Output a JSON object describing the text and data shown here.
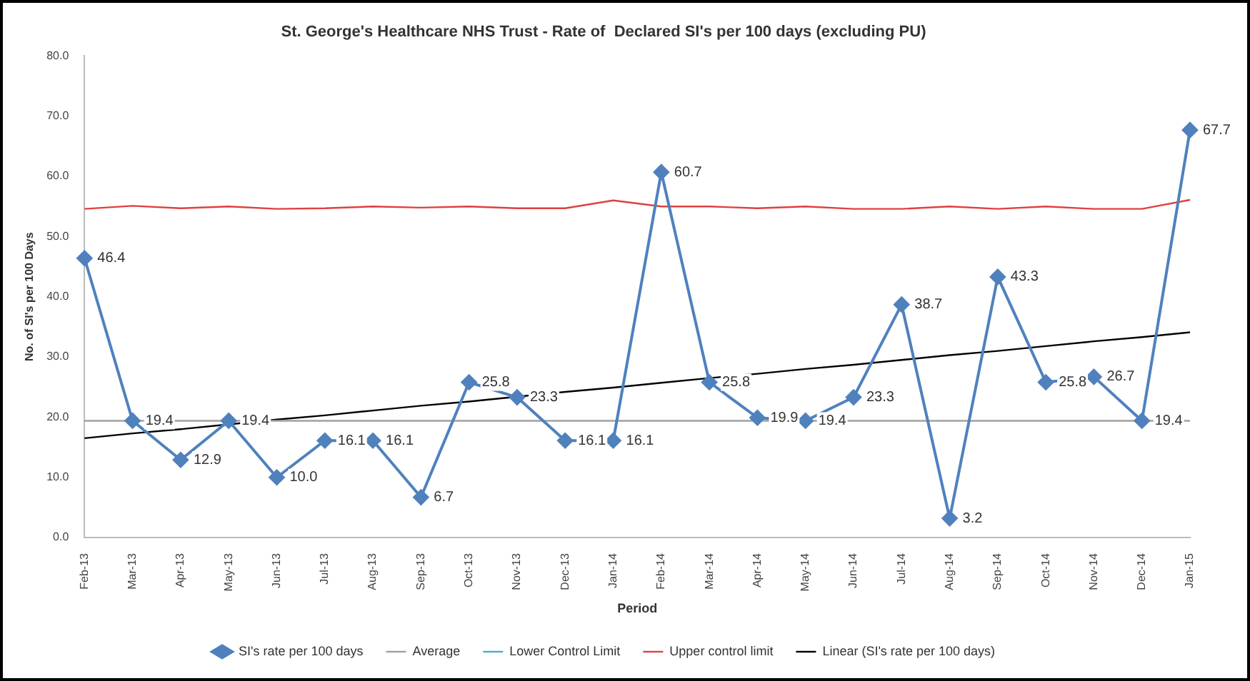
{
  "chart_data": {
    "type": "line",
    "title": "St. George's Healthcare NHS Trust - Rate of  Declared SI's per 100 days (excluding PU)",
    "xlabel": "Period",
    "ylabel": "No. of SI's per 100 Days",
    "categories": [
      "Feb-13",
      "Mar-13",
      "Apr-13",
      "May-13",
      "Jun-13",
      "Jul-13",
      "Aug-13",
      "Sep-13",
      "Oct-13",
      "Nov-13",
      "Dec-13",
      "Jan-14",
      "Feb-14",
      "Mar-14",
      "Apr-14",
      "May-14",
      "Jun-14",
      "Jul-14",
      "Aug-14",
      "Sep-14",
      "Oct-14",
      "Nov-14",
      "Dec-14",
      "Jan-15"
    ],
    "series": [
      {
        "name": "SI's rate per 100 days",
        "color": "#4f81bd",
        "marker": "diamond",
        "values": [
          46.4,
          19.4,
          12.9,
          19.4,
          10.0,
          16.1,
          16.1,
          6.7,
          25.8,
          23.3,
          16.1,
          16.1,
          60.7,
          25.8,
          19.9,
          19.4,
          23.3,
          38.7,
          3.2,
          43.3,
          25.8,
          26.7,
          19.4,
          67.7
        ],
        "value_labels": [
          "46.4",
          "19.4",
          "12.9",
          "19.4",
          "10.0",
          "16.1",
          "16.1",
          "6.7",
          "25.8",
          "23.3",
          "16.1",
          "16.1",
          "60.7",
          "25.8",
          "19.9",
          "19.4",
          "23.3",
          "38.7",
          "3.2",
          "43.3",
          "25.8",
          "26.7",
          "19.4",
          "67.7"
        ]
      },
      {
        "name": "Average",
        "color": "#a0a0a0",
        "marker": "none",
        "values": [
          19.4,
          19.4,
          19.4,
          19.4,
          19.4,
          19.4,
          19.4,
          19.4,
          19.4,
          19.4,
          19.4,
          19.4,
          19.4,
          19.4,
          19.4,
          19.4,
          19.4,
          19.4,
          19.4,
          19.4,
          19.4,
          19.4,
          19.4,
          19.4
        ]
      },
      {
        "name": "Lower Control Limit",
        "color": "#4bacc6",
        "marker": "none",
        "values": [
          null,
          null,
          null,
          null,
          null,
          null,
          null,
          null,
          null,
          null,
          null,
          null,
          null,
          null,
          null,
          null,
          null,
          null,
          null,
          null,
          null,
          null,
          null,
          null
        ]
      },
      {
        "name": "Upper control limit",
        "color": "#e04040",
        "marker": "none",
        "values": [
          54.6,
          55.1,
          54.7,
          55.0,
          54.6,
          54.7,
          55.0,
          54.8,
          55.0,
          54.7,
          54.7,
          56.0,
          55.0,
          55.0,
          54.7,
          55.0,
          54.6,
          54.6,
          55.0,
          54.6,
          55.0,
          54.6,
          54.6,
          56.1
        ]
      },
      {
        "name": "Linear (SI's rate per 100 days)",
        "color": "#000000",
        "marker": "none",
        "values": [
          16.5,
          17.3,
          18.0,
          18.8,
          19.6,
          20.3,
          21.1,
          21.9,
          22.6,
          23.4,
          24.2,
          24.9,
          25.7,
          26.5,
          27.2,
          28.0,
          28.7,
          29.5,
          30.3,
          31.0,
          31.8,
          32.6,
          33.3,
          34.1
        ]
      }
    ],
    "ylim": [
      0,
      80
    ],
    "yticks": [
      {
        "value": 0,
        "label": "0.0"
      },
      {
        "value": 10,
        "label": "10.0"
      },
      {
        "value": 20,
        "label": "20.0"
      },
      {
        "value": 30,
        "label": "30.0"
      },
      {
        "value": 40,
        "label": "40.0"
      },
      {
        "value": 50,
        "label": "50.0"
      },
      {
        "value": 60,
        "label": "60.0"
      },
      {
        "value": 70,
        "label": "70.0"
      },
      {
        "value": 80,
        "label": "80.0"
      }
    ],
    "grid": false,
    "legend": "bottom",
    "line_style": "solid"
  }
}
